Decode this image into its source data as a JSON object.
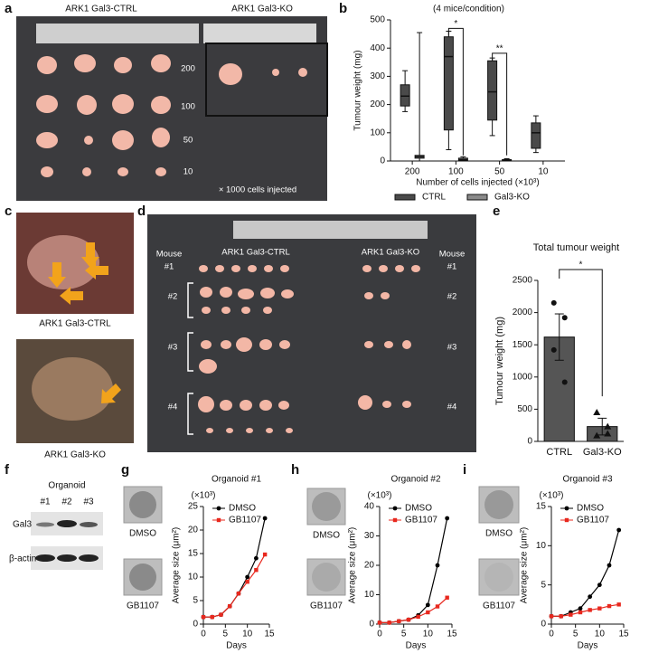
{
  "figure": {
    "panel_labels": [
      "a",
      "b",
      "c",
      "d",
      "e",
      "f",
      "g",
      "h",
      "i"
    ],
    "a": {
      "groups": [
        "ARK1 Gal3-CTRL",
        "ARK1 Gal3-KO"
      ],
      "rows": [
        "200",
        "100",
        "50",
        "10"
      ],
      "note": "× 1000 cells injected"
    },
    "c": {
      "captions": [
        "ARK1 Gal3-CTRL",
        "ARK1 Gal3-KO"
      ]
    },
    "d": {
      "groups": [
        "ARK1 Gal3-CTRL",
        "ARK1 Gal3-KO"
      ],
      "mouse": "Mouse",
      "mice": [
        "#1",
        "#2",
        "#3",
        "#4"
      ]
    },
    "f": {
      "title": "Organoid",
      "lanes": [
        "#1",
        "#2",
        "#3"
      ],
      "bands": [
        "Gal3",
        "β-actin"
      ]
    }
  },
  "chart_data": [
    {
      "type": "box",
      "title": "(4 mice/condition)",
      "x_label": "Number of cells injected (×10³)",
      "y_label": "Tumour weight (mg)",
      "categories": [
        "200",
        "100",
        "50",
        "10"
      ],
      "series": [
        {
          "name": "CTRL",
          "color": "#4a4a4a",
          "values": [
            {
              "min": 175,
              "q1": 195,
              "median": 230,
              "q3": 270,
              "max": 320
            },
            {
              "min": 40,
              "q1": 110,
              "median": 370,
              "q3": 440,
              "max": 460
            },
            {
              "min": 90,
              "q1": 145,
              "median": 245,
              "q3": 355,
              "max": 365
            },
            {
              "min": 30,
              "q1": 45,
              "median": 100,
              "q3": 135,
              "max": 160
            }
          ]
        },
        {
          "name": "Gal3-KO",
          "color": "#8a8a8a",
          "values": [
            {
              "min": 0,
              "q1": 10,
              "median": 15,
              "q3": 20,
              "max": 455
            },
            {
              "min": 0,
              "q1": 2,
              "median": 5,
              "q3": 10,
              "max": 15
            },
            {
              "min": 0,
              "q1": 2,
              "median": 3,
              "q3": 5,
              "max": 8
            },
            null
          ]
        }
      ],
      "annotations": [
        "*",
        "**"
      ],
      "ylim": [
        0,
        500
      ],
      "yticks": [
        0,
        100,
        200,
        300,
        400,
        500
      ]
    },
    {
      "type": "bar",
      "title": "Total tumour weight",
      "y_label": "Tumour weight (mg)",
      "categories": [
        "CTRL",
        "Gal3-KO"
      ],
      "values": [
        1620,
        230
      ],
      "errors": [
        360,
        130
      ],
      "points": [
        [
          2150,
          1920,
          1420,
          920
        ],
        [
          450,
          230,
          90,
          120
        ]
      ],
      "color": "#555555",
      "annotations": [
        "*"
      ],
      "ylim": [
        0,
        2500
      ],
      "yticks": [
        0,
        500,
        1000,
        1500,
        2000,
        2500
      ]
    },
    {
      "type": "line",
      "title": "Organoid #1",
      "multiplier": "(×10³)",
      "x_label": "Days",
      "y_label": "Average size (μm²)",
      "x": [
        0,
        2,
        4,
        6,
        8,
        10,
        12,
        14
      ],
      "series": [
        {
          "name": "DMSO",
          "color": "#000000",
          "marker": "circle",
          "values": [
            1.5,
            1.5,
            2,
            3.8,
            6.5,
            10,
            14,
            22.5
          ]
        },
        {
          "name": "GB1107",
          "color": "#e8281e",
          "marker": "square",
          "values": [
            1.5,
            1.5,
            2,
            3.8,
            6.5,
            9,
            11.5,
            14.8
          ]
        }
      ],
      "xlim": [
        0,
        15
      ],
      "xticks": [
        0,
        5,
        10,
        15
      ],
      "ylim": [
        0,
        25
      ],
      "yticks": [
        0,
        5,
        10,
        15,
        20,
        25
      ]
    },
    {
      "type": "line",
      "title": "Organoid #2",
      "multiplier": "(×10³)",
      "x_label": "Days",
      "y_label": "Average size (μm²)",
      "x": [
        0,
        2,
        4,
        6,
        8,
        10,
        12,
        14
      ],
      "series": [
        {
          "name": "DMSO",
          "color": "#000000",
          "marker": "circle",
          "values": [
            0.5,
            0.5,
            1,
            1.5,
            3,
            6.5,
            20,
            36
          ]
        },
        {
          "name": "GB1107",
          "color": "#e8281e",
          "marker": "square",
          "values": [
            0.5,
            0.5,
            1,
            1.5,
            2.5,
            4,
            6,
            9
          ]
        }
      ],
      "xlim": [
        0,
        15
      ],
      "xticks": [
        0,
        5,
        10,
        15
      ],
      "ylim": [
        0,
        40
      ],
      "yticks": [
        0,
        10,
        20,
        30,
        40
      ]
    },
    {
      "type": "line",
      "title": "Organoid #3",
      "multiplier": "(×10³)",
      "x_label": "Days",
      "y_label": "Average size (μm²)",
      "x": [
        0,
        2,
        4,
        6,
        8,
        10,
        12,
        14
      ],
      "series": [
        {
          "name": "DMSO",
          "color": "#000000",
          "marker": "circle",
          "values": [
            1,
            1,
            1.5,
            2,
            3.5,
            5,
            7.5,
            12
          ]
        },
        {
          "name": "GB1107",
          "color": "#e8281e",
          "marker": "square",
          "values": [
            1,
            1,
            1.2,
            1.5,
            1.8,
            2,
            2.3,
            2.5
          ]
        }
      ],
      "xlim": [
        0,
        15
      ],
      "xticks": [
        0,
        5,
        10,
        15
      ],
      "ylim": [
        0,
        15
      ],
      "yticks": [
        0,
        5,
        10,
        15
      ]
    }
  ]
}
